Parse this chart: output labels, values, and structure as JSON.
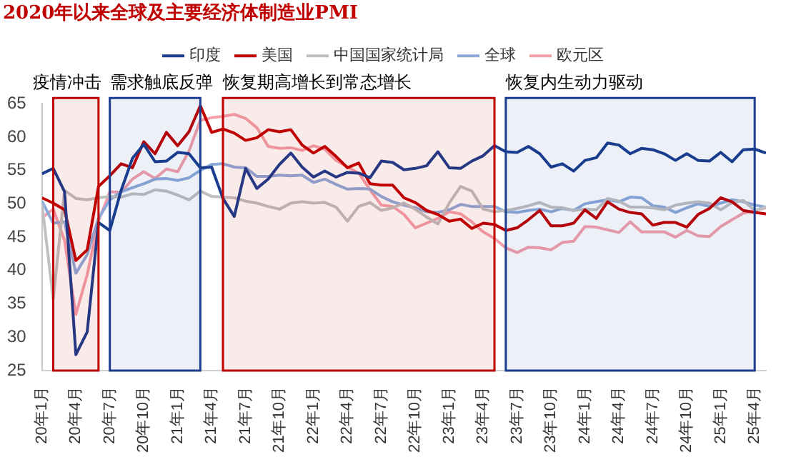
{
  "chart_data": {
    "type": "line",
    "title": "2020年以来全球及主要经济体制造业PMI",
    "x": [
      "2020-01",
      "2020-02",
      "2020-03",
      "2020-04",
      "2020-05",
      "2020-06",
      "2020-07",
      "2020-08",
      "2020-09",
      "2020-10",
      "2020-11",
      "2020-12",
      "2021-01",
      "2021-02",
      "2021-03",
      "2021-04",
      "2021-05",
      "2021-06",
      "2021-07",
      "2021-08",
      "2021-09",
      "2021-10",
      "2021-11",
      "2021-12",
      "2022-01",
      "2022-02",
      "2022-03",
      "2022-04",
      "2022-05",
      "2022-06",
      "2022-07",
      "2022-08",
      "2022-09",
      "2022-10",
      "2022-11",
      "2022-12",
      "2023-01",
      "2023-02",
      "2023-03",
      "2023-04",
      "2023-05",
      "2023-06",
      "2023-07",
      "2023-08",
      "2023-09",
      "2023-10",
      "2023-11",
      "2023-12",
      "2024-01",
      "2024-02",
      "2024-03",
      "2024-04",
      "2024-05",
      "2024-06",
      "2024-07",
      "2024-08",
      "2024-09",
      "2024-10",
      "2024-11",
      "2024-12",
      "2025-01",
      "2025-02",
      "2025-03",
      "2025-04",
      "2025-05"
    ],
    "series": [
      {
        "name": "印度",
        "color": "#1a3d8f",
        "values": [
          54.5,
          55.3,
          51.8,
          27.4,
          30.8,
          47.2,
          46.0,
          52.0,
          56.8,
          58.9,
          56.3,
          56.4,
          57.7,
          57.5,
          55.4,
          55.5,
          50.8,
          48.1,
          55.3,
          52.3,
          53.7,
          55.9,
          57.6,
          55.5,
          54.0,
          54.9,
          54.0,
          54.7,
          54.6,
          53.9,
          56.4,
          56.2,
          55.1,
          55.3,
          55.7,
          57.8,
          55.4,
          55.3,
          56.4,
          57.2,
          58.7,
          57.8,
          57.7,
          58.6,
          57.5,
          55.5,
          56.0,
          54.9,
          56.5,
          56.9,
          59.1,
          58.8,
          57.5,
          58.3,
          58.1,
          57.5,
          56.5,
          57.5,
          56.5,
          56.4,
          57.7,
          56.3,
          58.1,
          58.2,
          57.6
        ]
      },
      {
        "name": "美国",
        "color": "#c00000",
        "values": [
          50.9,
          50.1,
          49.1,
          41.5,
          43.1,
          52.6,
          54.2,
          56.0,
          55.4,
          59.3,
          57.5,
          60.7,
          58.7,
          60.8,
          64.7,
          60.7,
          61.2,
          60.6,
          59.5,
          59.9,
          61.1,
          60.8,
          61.1,
          58.8,
          57.6,
          58.6,
          57.1,
          55.4,
          56.1,
          53.0,
          52.8,
          52.8,
          50.9,
          50.2,
          49.0,
          48.4,
          47.4,
          47.7,
          46.3,
          47.1,
          46.9,
          46.0,
          46.4,
          47.6,
          49.0,
          46.7,
          46.7,
          47.1,
          49.1,
          47.8,
          50.3,
          49.2,
          48.7,
          48.5,
          46.8,
          47.2,
          47.2,
          46.5,
          48.4,
          49.3,
          50.9,
          50.3,
          49.0,
          48.7,
          48.5
        ]
      },
      {
        "name": "中国国家统计局",
        "color": "#bfbfbf",
        "values": [
          50.0,
          35.7,
          52.0,
          50.8,
          50.6,
          50.9,
          51.1,
          51.0,
          51.5,
          51.4,
          52.1,
          51.9,
          51.3,
          50.6,
          51.9,
          51.1,
          51.0,
          50.9,
          50.4,
          50.1,
          49.6,
          49.2,
          50.1,
          50.3,
          50.1,
          50.2,
          49.5,
          47.4,
          49.6,
          50.2,
          49.0,
          49.4,
          50.1,
          49.2,
          48.0,
          47.0,
          50.1,
          52.6,
          51.9,
          49.2,
          48.8,
          49.0,
          49.3,
          49.7,
          50.2,
          49.5,
          49.4,
          49.0,
          49.2,
          49.1,
          50.8,
          50.4,
          49.5,
          49.5,
          49.4,
          49.1,
          49.8,
          50.1,
          50.3,
          50.1,
          49.1,
          50.2,
          50.5,
          49.0,
          49.5
        ]
      },
      {
        "name": "全球",
        "color": "#8eaadb",
        "values": [
          50.4,
          47.1,
          47.3,
          39.6,
          42.4,
          47.8,
          50.6,
          51.8,
          52.4,
          53.0,
          53.7,
          53.8,
          53.5,
          53.9,
          55.0,
          55.9,
          56.0,
          55.5,
          55.4,
          54.1,
          54.1,
          54.3,
          54.2,
          54.3,
          53.2,
          53.7,
          52.9,
          52.2,
          52.3,
          52.2,
          51.1,
          50.3,
          49.8,
          49.4,
          48.8,
          48.7,
          49.1,
          49.9,
          49.6,
          49.6,
          49.6,
          48.8,
          48.7,
          49.0,
          49.2,
          48.8,
          49.3,
          49.0,
          50.0,
          50.3,
          50.6,
          50.3,
          51.0,
          50.9,
          49.7,
          49.5,
          48.7,
          49.4,
          50.0,
          49.6,
          50.1,
          50.6,
          50.3,
          49.8,
          49.5
        ]
      },
      {
        "name": "欧元区",
        "color": "#f4a0aa",
        "values": [
          47.9,
          49.2,
          44.5,
          33.4,
          39.4,
          47.4,
          51.8,
          51.7,
          53.7,
          54.8,
          53.8,
          55.2,
          54.8,
          57.9,
          62.5,
          62.9,
          63.1,
          63.4,
          62.8,
          61.4,
          58.6,
          58.3,
          58.4,
          58.0,
          58.7,
          58.2,
          56.5,
          55.5,
          54.6,
          52.1,
          49.8,
          49.6,
          48.4,
          46.4,
          47.1,
          47.8,
          48.8,
          48.5,
          47.3,
          45.8,
          44.8,
          43.4,
          42.7,
          43.5,
          43.4,
          43.1,
          44.2,
          44.4,
          46.6,
          46.5,
          46.1,
          45.7,
          47.3,
          45.8,
          45.8,
          45.8,
          45.0,
          46.0,
          45.2,
          45.1,
          46.6,
          47.6,
          48.6,
          49.0,
          49.4
        ]
      }
    ],
    "xlim": [
      "2020-01",
      "2025-05"
    ],
    "xticks": [
      {
        "value": "2020-01",
        "label": "20年1月"
      },
      {
        "value": "2020-04",
        "label": "20年4月"
      },
      {
        "value": "2020-07",
        "label": "20年7月"
      },
      {
        "value": "2020-10",
        "label": "20年10月"
      },
      {
        "value": "2021-01",
        "label": "21年1月"
      },
      {
        "value": "2021-04",
        "label": "21年4月"
      },
      {
        "value": "2021-07",
        "label": "21年7月"
      },
      {
        "value": "2021-10",
        "label": "21年10月"
      },
      {
        "value": "2022-01",
        "label": "22年1月"
      },
      {
        "value": "2022-04",
        "label": "22年4月"
      },
      {
        "value": "2022-07",
        "label": "22年7月"
      },
      {
        "value": "2022-10",
        "label": "22年10月"
      },
      {
        "value": "2023-01",
        "label": "23年1月"
      },
      {
        "value": "2023-04",
        "label": "23年4月"
      },
      {
        "value": "2023-07",
        "label": "23年7月"
      },
      {
        "value": "2023-10",
        "label": "23年10月"
      },
      {
        "value": "2024-01",
        "label": "24年1月"
      },
      {
        "value": "2024-04",
        "label": "24年4月"
      },
      {
        "value": "2024-07",
        "label": "24年7月"
      },
      {
        "value": "2024-10",
        "label": "24年10月"
      },
      {
        "value": "2025-01",
        "label": "25年1月"
      },
      {
        "value": "2025-04",
        "label": "25年4月"
      }
    ],
    "ylim": [
      25,
      65
    ],
    "yticks": [
      25,
      30,
      35,
      40,
      45,
      50,
      55,
      60,
      65
    ],
    "bands": [
      {
        "axis": "x",
        "from": "2020-02",
        "to": "2020-06",
        "label": "疫情冲击",
        "color": "#c00000"
      },
      {
        "axis": "x",
        "from": "2020-07",
        "to": "2021-03",
        "label": "需求触底反弹",
        "color": "#1a3d8f"
      },
      {
        "axis": "x",
        "from": "2021-05",
        "to": "2023-05",
        "label": "恢复期高增长到常态增长",
        "color": "#c00000"
      },
      {
        "axis": "x",
        "from": "2023-06",
        "to": "2025-04",
        "label": "恢复内生动力驱动",
        "color": "#1a3d8f"
      }
    ],
    "grid": false,
    "legend": "top",
    "marker": "none",
    "line_style": "solid"
  }
}
